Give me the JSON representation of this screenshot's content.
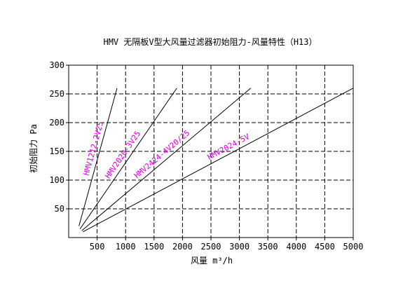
{
  "chart_data": {
    "type": "line",
    "title": "HMV 无隔板V型大风量过滤器初始阻力-风量特性（H13）",
    "xlabel": "风量 m³/h",
    "ylabel": "初始阻力 Pa",
    "xlim": [
      0,
      5000
    ],
    "ylim": [
      0,
      300
    ],
    "x_ticks": [
      500,
      1000,
      1500,
      2000,
      2500,
      3000,
      3500,
      4000,
      4500,
      5000
    ],
    "y_ticks": [
      50,
      100,
      150,
      200,
      250,
      300
    ],
    "grid": true,
    "line_color": "#000000",
    "label_color": "#e000e0",
    "series": [
      {
        "name": "HMV1212-2V25",
        "x": [
          180,
          850
        ],
        "y": [
          20,
          260
        ]
      },
      {
        "name": "HMV2020-3V25",
        "x": [
          200,
          1900
        ],
        "y": [
          15,
          260
        ]
      },
      {
        "name": "HMV2424-4V20/25",
        "x": [
          230,
          3200
        ],
        "y": [
          12,
          260
        ]
      },
      {
        "name": "HMV2024-5V",
        "x": [
          250,
          5000
        ],
        "y": [
          10,
          260
        ]
      }
    ]
  }
}
